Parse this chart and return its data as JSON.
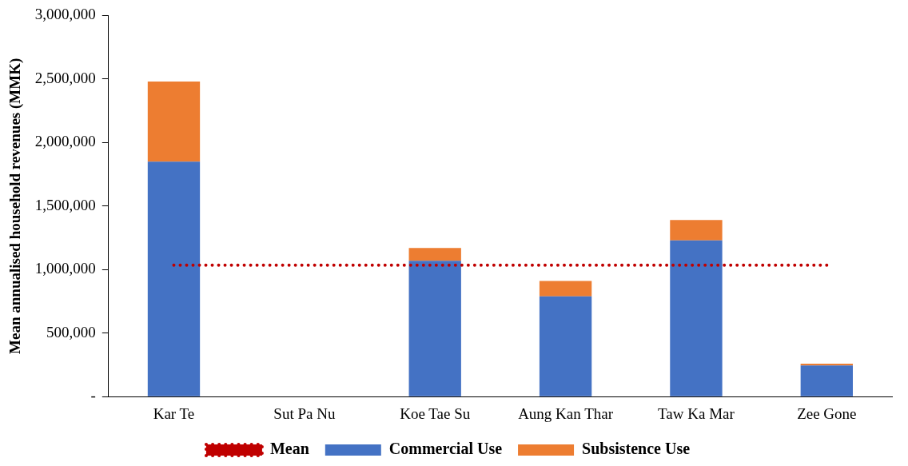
{
  "chart_data": {
    "type": "bar",
    "stacked": true,
    "ylabel": "Mean annualised household revenues (MMK)",
    "categories": [
      "Kar Te",
      "Sut Pa Nu",
      "Koe Tae Su",
      "Aung Kan Thar",
      "Taw Ka Mar",
      "Zee Gone"
    ],
    "series": [
      {
        "name": "Commercial Use",
        "color": "#4472c4",
        "values": [
          1850000,
          0,
          1070000,
          790000,
          1230000,
          245000
        ]
      },
      {
        "name": "Subsistence Use",
        "color": "#ed7d31",
        "values": [
          630000,
          0,
          100000,
          120000,
          160000,
          15000
        ]
      },
      {
        "name": "Mean",
        "type": "line",
        "color": "#c00000",
        "line_style": "dotted",
        "marker": "none",
        "values": [
          1035000,
          1035000,
          1035000,
          1035000,
          1035000,
          1035000
        ]
      }
    ],
    "ylim": [
      0,
      3000000
    ],
    "yticks": [
      {
        "value": 0,
        "label": "-"
      },
      {
        "value": 500000,
        "label": "500,000"
      },
      {
        "value": 1000000,
        "label": "1,000,000"
      },
      {
        "value": 1500000,
        "label": "1,500,000"
      },
      {
        "value": 2000000,
        "label": "2,000,000"
      },
      {
        "value": 2500000,
        "label": "2,500,000"
      },
      {
        "value": 3000000,
        "label": "3,000,000"
      }
    ],
    "grid": false,
    "legend": "bottom"
  }
}
